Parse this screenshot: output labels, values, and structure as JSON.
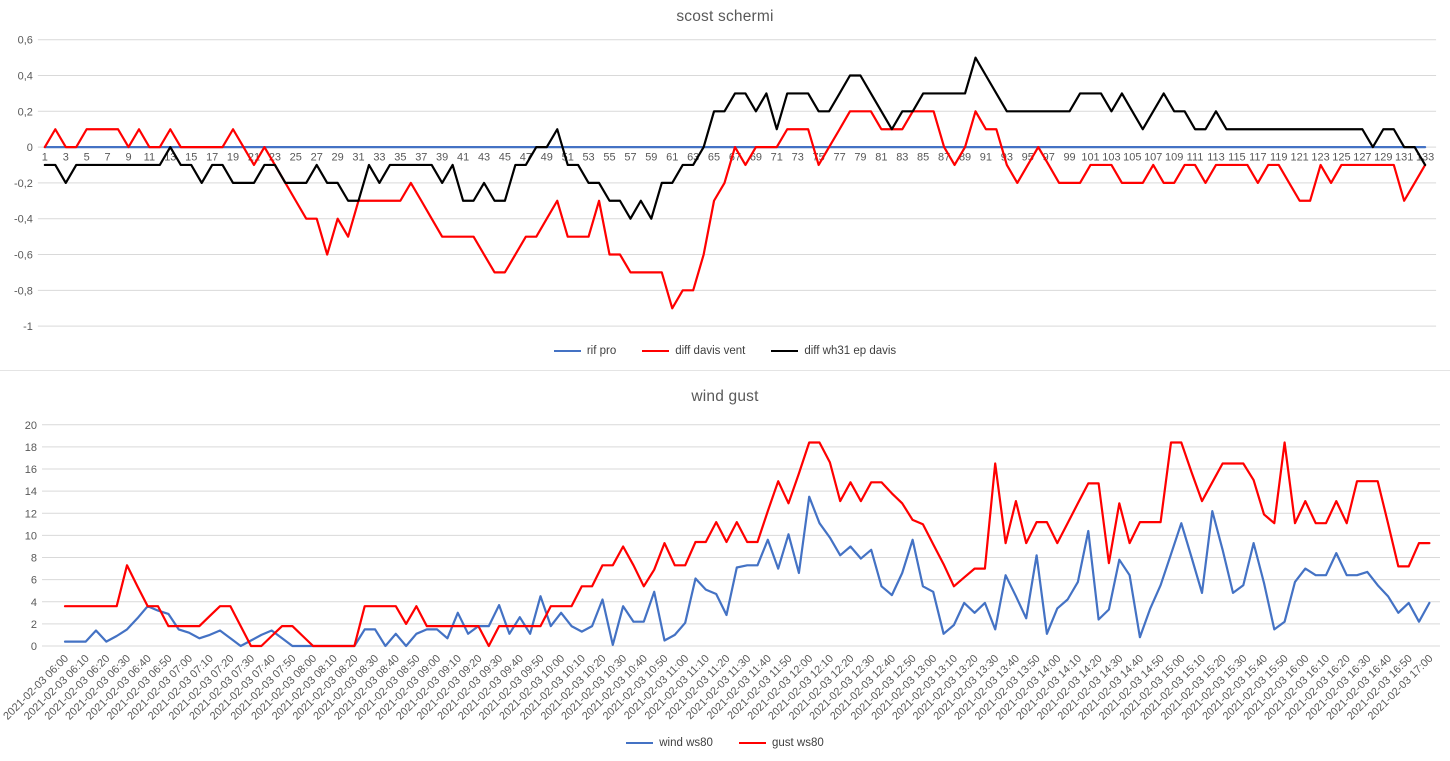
{
  "chart_data": [
    {
      "type": "line",
      "title": "scost schermi",
      "ylim": [
        -1,
        0.6
      ],
      "grid": true,
      "legend_position": "bottom",
      "y_tick_labels": [
        "0,6",
        "0,4",
        "0,2",
        "0",
        "-0,2",
        "-0,4",
        "-0,6",
        "-0,8",
        "-1"
      ],
      "y_tick_values": [
        0.6,
        0.4,
        0.2,
        0,
        -0.2,
        -0.4,
        -0.6,
        -0.8,
        -1
      ],
      "x_tick_labels": [
        "1",
        "3",
        "5",
        "7",
        "9",
        "11",
        "13",
        "15",
        "17",
        "19",
        "21",
        "23",
        "25",
        "27",
        "29",
        "31",
        "33",
        "35",
        "37",
        "39",
        "41",
        "43",
        "45",
        "47",
        "49",
        "51",
        "53",
        "55",
        "57",
        "59",
        "61",
        "63",
        "65",
        "67",
        "69",
        "71",
        "73",
        "75",
        "77",
        "79",
        "81",
        "83",
        "85",
        "87",
        "89",
        "91",
        "93",
        "95",
        "97",
        "99",
        "101",
        "103",
        "105",
        "107",
        "109",
        "111",
        "113",
        "115",
        "117",
        "119",
        "121",
        "123",
        "125",
        "127",
        "129",
        "131",
        "133"
      ],
      "series": [
        {
          "name": "rif pro",
          "color": "#4472C4",
          "values": [
            0,
            0,
            0,
            0,
            0,
            0,
            0,
            0,
            0,
            0,
            0,
            0,
            0,
            0,
            0,
            0,
            0,
            0,
            0,
            0,
            0,
            0,
            0,
            0,
            0,
            0,
            0,
            0,
            0,
            0,
            0,
            0,
            0,
            0,
            0,
            0,
            0,
            0,
            0,
            0,
            0,
            0,
            0,
            0,
            0,
            0,
            0,
            0,
            0,
            0,
            0,
            0,
            0,
            0,
            0,
            0,
            0,
            0,
            0,
            0,
            0,
            0,
            0,
            0,
            0,
            0,
            0,
            0,
            0,
            0,
            0,
            0,
            0,
            0,
            0,
            0,
            0,
            0,
            0,
            0,
            0,
            0,
            0,
            0,
            0,
            0,
            0,
            0,
            0,
            0,
            0,
            0,
            0,
            0,
            0,
            0,
            0,
            0,
            0,
            0,
            0,
            0,
            0,
            0,
            0,
            0,
            0,
            0,
            0,
            0,
            0,
            0,
            0,
            0,
            0,
            0,
            0,
            0,
            0,
            0,
            0,
            0,
            0,
            0,
            0,
            0,
            0,
            0,
            0,
            0,
            0,
            0,
            0
          ]
        },
        {
          "name": "diff davis vent",
          "color": "#FF0000",
          "values": [
            0,
            0.1,
            0,
            0,
            0.1,
            0.1,
            0.1,
            0.1,
            0,
            0.1,
            0,
            0,
            0.1,
            0,
            0,
            0,
            0,
            0,
            0.1,
            0,
            -0.1,
            0,
            -0.1,
            -0.2,
            -0.3,
            -0.4,
            -0.4,
            -0.6,
            -0.4,
            -0.5,
            -0.3,
            -0.3,
            -0.3,
            -0.3,
            -0.3,
            -0.2,
            -0.3,
            -0.4,
            -0.5,
            -0.5,
            -0.5,
            -0.5,
            -0.6,
            -0.7,
            -0.7,
            -0.6,
            -0.5,
            -0.5,
            -0.4,
            -0.3,
            -0.5,
            -0.5,
            -0.5,
            -0.3,
            -0.6,
            -0.6,
            -0.7,
            -0.7,
            -0.7,
            -0.7,
            -0.9,
            -0.8,
            -0.8,
            -0.6,
            -0.3,
            -0.2,
            0,
            -0.1,
            0,
            0,
            0,
            0.1,
            0.1,
            0.1,
            -0.1,
            0,
            0.1,
            0.2,
            0.2,
            0.2,
            0.1,
            0.1,
            0.1,
            0.2,
            0.2,
            0.2,
            0,
            -0.1,
            0,
            0.2,
            0.1,
            0.1,
            -0.1,
            -0.2,
            -0.1,
            0,
            -0.1,
            -0.2,
            -0.2,
            -0.2,
            -0.1,
            -0.1,
            -0.1,
            -0.2,
            -0.2,
            -0.2,
            -0.1,
            -0.2,
            -0.2,
            -0.1,
            -0.1,
            -0.2,
            -0.1,
            -0.1,
            -0.1,
            -0.1,
            -0.2,
            -0.1,
            -0.1,
            -0.2,
            -0.3,
            -0.3,
            -0.1,
            -0.2,
            -0.1,
            -0.1,
            -0.1,
            -0.1,
            -0.1,
            -0.1,
            -0.3,
            -0.2,
            -0.1
          ]
        },
        {
          "name": "diff wh31 ep davis",
          "color": "#000000",
          "values": [
            -0.1,
            -0.1,
            -0.2,
            -0.1,
            -0.1,
            -0.1,
            -0.1,
            -0.1,
            -0.1,
            -0.1,
            -0.1,
            -0.1,
            0,
            -0.1,
            -0.1,
            -0.2,
            -0.1,
            -0.1,
            -0.2,
            -0.2,
            -0.2,
            -0.1,
            -0.1,
            -0.2,
            -0.2,
            -0.2,
            -0.1,
            -0.2,
            -0.2,
            -0.3,
            -0.3,
            -0.1,
            -0.2,
            -0.1,
            -0.1,
            -0.1,
            -0.1,
            -0.1,
            -0.2,
            -0.1,
            -0.3,
            -0.3,
            -0.2,
            -0.3,
            -0.3,
            -0.1,
            -0.1,
            0,
            0,
            0.1,
            -0.1,
            -0.1,
            -0.2,
            -0.2,
            -0.3,
            -0.3,
            -0.4,
            -0.3,
            -0.4,
            -0.2,
            -0.2,
            -0.1,
            -0.1,
            0,
            0.2,
            0.2,
            0.3,
            0.3,
            0.2,
            0.3,
            0.1,
            0.3,
            0.3,
            0.3,
            0.2,
            0.2,
            0.3,
            0.4,
            0.4,
            0.3,
            0.2,
            0.1,
            0.2,
            0.2,
            0.3,
            0.3,
            0.3,
            0.3,
            0.3,
            0.5,
            0.4,
            0.3,
            0.2,
            0.2,
            0.2,
            0.2,
            0.2,
            0.2,
            0.2,
            0.3,
            0.3,
            0.3,
            0.2,
            0.3,
            0.2,
            0.1,
            0.2,
            0.3,
            0.2,
            0.2,
            0.1,
            0.1,
            0.2,
            0.1,
            0.1,
            0.1,
            0.1,
            0.1,
            0.1,
            0.1,
            0.1,
            0.1,
            0.1,
            0.1,
            0.1,
            0.1,
            0.1,
            0,
            0.1,
            0.1,
            0,
            0,
            -0.1
          ]
        }
      ]
    },
    {
      "type": "line",
      "title": "wind gust",
      "ylim": [
        0,
        20
      ],
      "grid": true,
      "legend_position": "bottom",
      "y_tick_labels": [
        "20",
        "18",
        "16",
        "14",
        "12",
        "10",
        "8",
        "6",
        "4",
        "2",
        "0"
      ],
      "y_tick_values": [
        20,
        18,
        16,
        14,
        12,
        10,
        8,
        6,
        4,
        2,
        0
      ],
      "x_tick_labels": [
        "2021-02-03 06:00",
        "2021-02-03 06:10",
        "2021-02-03 06:20",
        "2021-02-03 06:30",
        "2021-02-03 06:40",
        "2021-02-03 06:50",
        "2021-02-03 07:00",
        "2021-02-03 07:10",
        "2021-02-03 07:20",
        "2021-02-03 07:30",
        "2021-02-03 07:40",
        "2021-02-03 07:50",
        "2021-02-03 08:00",
        "2021-02-03 08:10",
        "2021-02-03 08:20",
        "2021-02-03 08:30",
        "2021-02-03 08:40",
        "2021-02-03 08:50",
        "2021-02-03 09:00",
        "2021-02-03 09:10",
        "2021-02-03 09:20",
        "2021-02-03 09:30",
        "2021-02-03 09:40",
        "2021-02-03 09:50",
        "2021-02-03 10:00",
        "2021-02-03 10:10",
        "2021-02-03 10:20",
        "2021-02-03 10:30",
        "2021-02-03 10:40",
        "2021-02-03 10:50",
        "2021-02-03 11:00",
        "2021-02-03 11:10",
        "2021-02-03 11:20",
        "2021-02-03 11:30",
        "2021-02-03 11:40",
        "2021-02-03 11:50",
        "2021-02-03 12:00",
        "2021-02-03 12:10",
        "2021-02-03 12:20",
        "2021-02-03 12:30",
        "2021-02-03 12:40",
        "2021-02-03 12:50",
        "2021-02-03 13:00",
        "2021-02-03 13:10",
        "2021-02-03 13:20",
        "2021-02-03 13:30",
        "2021-02-03 13:40",
        "2021-02-03 13:50",
        "2021-02-03 14:00",
        "2021-02-03 14:10",
        "2021-02-03 14:20",
        "2021-02-03 14:30",
        "2021-02-03 14:40",
        "2021-02-03 14:50",
        "2021-02-03 15:00",
        "2021-02-03 15:10",
        "2021-02-03 15:20",
        "2021-02-03 15:30",
        "2021-02-03 15:40",
        "2021-02-03 15:50",
        "2021-02-03 16:00",
        "2021-02-03 16:10",
        "2021-02-03 16:20",
        "2021-02-03 16:30",
        "2021-02-03 16:40",
        "2021-02-03 16:50",
        "2021-02-03 17:00"
      ],
      "series": [
        {
          "name": "wind ws80",
          "color": "#4472C4",
          "values": [
            0.4,
            0.4,
            0.4,
            1.4,
            0.4,
            0.9,
            1.5,
            2.5,
            3.6,
            3.2,
            2.9,
            1.5,
            1.2,
            0.7,
            1.0,
            1.4,
            0.7,
            0,
            0.5,
            1.0,
            1.4,
            0.7,
            0,
            0,
            0,
            0,
            0,
            0,
            0,
            1.5,
            1.5,
            0,
            1.1,
            0,
            1.1,
            1.5,
            1.5,
            0.7,
            3.0,
            1.1,
            1.8,
            1.8,
            3.7,
            1.1,
            2.6,
            1.1,
            4.5,
            1.8,
            3.0,
            1.8,
            1.3,
            1.8,
            4.2,
            0.1,
            3.6,
            2.2,
            2.2,
            4.9,
            0.5,
            1.0,
            2.1,
            6.1,
            5.1,
            4.7,
            2.8,
            7.1,
            7.3,
            7.3,
            9.6,
            7.0,
            10.1,
            6.6,
            13.5,
            11.1,
            9.8,
            8.2,
            9.0,
            7.9,
            8.7,
            5.4,
            4.6,
            6.6,
            9.6,
            5.4,
            4.9,
            1.1,
            1.9,
            3.9,
            3.0,
            3.9,
            1.5,
            6.4,
            4.5,
            2.5,
            8.2,
            1.1,
            3.4,
            4.2,
            5.8,
            10.4,
            2.4,
            3.3,
            7.8,
            6.4,
            0.8,
            3.4,
            5.5,
            8.3,
            11.1,
            8.0,
            4.8,
            12.2,
            8.7,
            4.8,
            5.5,
            9.3,
            5.7,
            1.5,
            2.2,
            5.8,
            7.0,
            6.4,
            6.4,
            8.4,
            6.4,
            6.4,
            6.7,
            5.5,
            4.5,
            3.0,
            3.9,
            2.2,
            3.9
          ]
        },
        {
          "name": "gust ws80",
          "color": "#FF0000",
          "values": [
            3.6,
            3.6,
            3.6,
            3.6,
            3.6,
            3.6,
            7.3,
            5.4,
            3.6,
            3.6,
            1.8,
            1.8,
            1.8,
            1.8,
            2.7,
            3.6,
            3.6,
            1.8,
            0,
            0,
            0.9,
            1.8,
            1.8,
            0.9,
            0,
            0,
            0,
            0,
            0,
            3.6,
            3.6,
            3.6,
            3.6,
            2.0,
            3.6,
            1.8,
            1.8,
            1.8,
            1.8,
            1.8,
            1.8,
            0,
            1.8,
            1.8,
            1.8,
            1.8,
            1.8,
            3.6,
            3.6,
            3.6,
            5.4,
            5.4,
            7.3,
            7.3,
            9.0,
            7.3,
            5.4,
            6.9,
            9.3,
            7.3,
            7.3,
            9.4,
            9.4,
            11.2,
            9.4,
            11.2,
            9.4,
            9.4,
            12.2,
            14.9,
            12.9,
            15.6,
            18.4,
            18.4,
            16.6,
            13.1,
            14.8,
            13.1,
            14.8,
            14.8,
            13.8,
            12.9,
            11.4,
            11.0,
            9.2,
            7.4,
            5.4,
            6.2,
            7.0,
            7.0,
            16.5,
            9.3,
            13.1,
            9.3,
            11.2,
            11.2,
            9.3,
            11.1,
            12.9,
            14.7,
            14.7,
            7.5,
            12.9,
            9.3,
            11.2,
            11.2,
            11.2,
            18.4,
            18.4,
            15.7,
            13.1,
            14.8,
            16.5,
            16.5,
            16.5,
            15.0,
            11.9,
            11.1,
            18.4,
            11.1,
            13.1,
            11.1,
            11.1,
            13.1,
            11.1,
            14.9,
            14.9,
            14.9,
            11.1,
            7.2,
            7.2,
            9.3,
            9.3
          ]
        }
      ]
    }
  ]
}
